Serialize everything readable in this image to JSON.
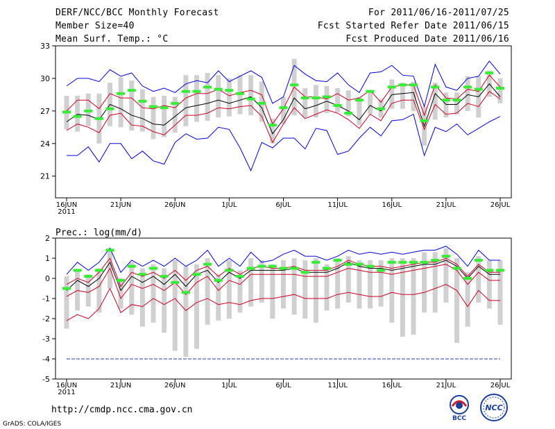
{
  "header": {
    "title": "DERF/NCC/BCC Monthly Forecast",
    "member_size": "Member Size=40",
    "variable": "Mean Surf. Temp.: °C",
    "period": "For 2011/06/16-2011/07/25",
    "refer_date": "Fcst Started Refer Date 2011/06/15",
    "produced_date": "Fcst Produced Date 2011/06/16"
  },
  "footer": {
    "url": "http://cmdp.ncc.cma.gov.cn",
    "credit": "GrADS: COLA/IGES",
    "logo_left_text": "BCC",
    "logo_right_text": "NCC"
  },
  "colors": {
    "grey_bar": "#d0d0d0",
    "green": "#33ee33",
    "mean": "#000000",
    "red": "#cc0022",
    "blue": "#0000dd",
    "dashed_blue": "#2233aa"
  },
  "chart_data": [
    {
      "type": "box-line",
      "title": "Mean Surf. Temp.: °C",
      "ylabel": "°C",
      "ylim": [
        19,
        33
      ],
      "yticks": [
        21,
        24,
        27,
        30,
        33
      ],
      "x_tick_labels": [
        "16JUN\n2011",
        "21JUN",
        "26JUN",
        "1JUL",
        "6JUL",
        "11JUL",
        "16JUL",
        "21JUL",
        "26JUL"
      ],
      "x_tick_day_index": [
        0,
        5,
        10,
        15,
        20,
        25,
        30,
        35,
        40
      ],
      "days": 40,
      "series": [
        {
          "name": "max",
          "color": "blue",
          "values": [
            29.3,
            30,
            30,
            29.7,
            30.8,
            30.2,
            30.5,
            29.3,
            28.8,
            29.1,
            28.7,
            29.5,
            29.8,
            29.6,
            30.7,
            29.7,
            30.2,
            30.7,
            30.1,
            27.7,
            28.3,
            31.2,
            30.4,
            29.8,
            29.7,
            30.5,
            29.4,
            28.7,
            30.5,
            30.6,
            31.2,
            30.3,
            30.2,
            27.4,
            31.3,
            29.2,
            28.9,
            30,
            30.2,
            31.6,
            30.4
          ]
        },
        {
          "name": "upper",
          "color": "red",
          "values": [
            27,
            28,
            28,
            27.2,
            28.6,
            28.2,
            28.2,
            27.3,
            27.2,
            27.5,
            27.3,
            28.2,
            28.6,
            28.6,
            29,
            28.4,
            28.7,
            28.9,
            28.5,
            25.8,
            27.2,
            29.2,
            28.3,
            28.3,
            28.1,
            28.6,
            28,
            28.2,
            28.9,
            27.8,
            29.2,
            29.4,
            29.4,
            26.6,
            29.4,
            28.2,
            28.1,
            29,
            28.8,
            30.3,
            29.2
          ]
        },
        {
          "name": "mean",
          "color": "mean",
          "values": [
            26,
            26.7,
            26.6,
            26.2,
            27.6,
            27.2,
            26.6,
            26.3,
            25.8,
            25.7,
            26.5,
            27.3,
            27.5,
            27.7,
            28,
            27.7,
            28,
            28.3,
            27.3,
            24.9,
            26.2,
            28.2,
            27.2,
            27.5,
            27.9,
            27.5,
            27,
            26.2,
            27.5,
            27,
            28.5,
            28.6,
            28.7,
            25.6,
            28.6,
            27.6,
            27.6,
            28.5,
            28.3,
            29.5,
            28.3
          ]
        },
        {
          "name": "lower",
          "color": "red",
          "values": [
            25.2,
            25.8,
            25.5,
            25,
            26.6,
            26.8,
            25.7,
            25.6,
            25.1,
            24.8,
            25.7,
            26.6,
            26.6,
            26.8,
            27.3,
            27.2,
            27.4,
            27.5,
            26.5,
            24.1,
            25.8,
            27.3,
            26.3,
            26.7,
            27.1,
            26.8,
            26.2,
            25.4,
            26.7,
            26.1,
            27.7,
            28,
            28,
            25.3,
            27.6,
            26.7,
            26.8,
            27.7,
            27.4,
            28.8,
            28.1
          ]
        },
        {
          "name": "min",
          "color": "blue",
          "values": [
            22.9,
            22.9,
            23.7,
            22.3,
            24,
            24,
            22.6,
            23.3,
            22.4,
            22.1,
            24.1,
            24.9,
            24.4,
            24.5,
            25.5,
            25.3,
            23.6,
            21.5,
            24.1,
            23.6,
            24.5,
            24.5,
            23.5,
            25.4,
            25.2,
            23,
            23.3,
            24.5,
            25.5,
            24.7,
            26.1,
            26.2,
            26.7,
            22.9,
            25.5,
            25.1,
            25.8,
            24.8,
            25.4,
            26,
            26.5
          ]
        }
      ],
      "boxes_low": [
        25.3,
        25.1,
        25.6,
        24.0,
        25.6,
        25.5,
        25.2,
        25.1,
        24.4,
        24.6,
        25.0,
        25.6,
        26.0,
        26.1,
        26.4,
        26.5,
        26.7,
        26.6,
        26.0,
        24.0,
        25.8,
        26.6,
        26.4,
        26.4,
        26.8,
        26.9,
        26.5,
        25.7,
        26.7,
        26.4,
        27.2,
        27.2,
        27.0,
        23.8,
        26.2,
        26.4,
        26.7,
        27.0,
        26.4,
        28.3,
        27.7
      ],
      "boxes_high": [
        28.4,
        28.4,
        28.6,
        28.6,
        29.6,
        30.1,
        29.8,
        29.0,
        28.3,
        28.4,
        28.3,
        30.3,
        30.3,
        30.5,
        30.3,
        30.0,
        30.3,
        30.3,
        29.7,
        26.3,
        28.3,
        31.8,
        29.1,
        29.4,
        29.3,
        29.1,
        28.9,
        28.3,
        28.8,
        28.1,
        29.9,
        29.6,
        29.7,
        27.4,
        29.6,
        28.7,
        28.7,
        30.2,
        30.2,
        30.7,
        30.0
      ],
      "green_marks": [
        26.9,
        26.5,
        27.0,
        26.3,
        27.2,
        28.6,
        28.9,
        27.9,
        27.4,
        27.3,
        27.7,
        28.8,
        28.8,
        29.2,
        29.0,
        28.9,
        28.6,
        28.1,
        27.7,
        25.7,
        27.3,
        29.4,
        28.2,
        28.2,
        28.3,
        27.5,
        26.8,
        28.0,
        28.8,
        27.2,
        29.2,
        29.4,
        29.4,
        26.1,
        29.2,
        28.0,
        28.0,
        29.2,
        29.0,
        30.5,
        29.1
      ]
    },
    {
      "type": "box-line",
      "title": "Prec.: log(mm/d)",
      "ylabel": "log(mm/d)",
      "ylim": [
        -5,
        2
      ],
      "yticks": [
        -5,
        -4,
        -3,
        -2,
        -1,
        0,
        1,
        2
      ],
      "x_tick_labels": [
        "16JUN\n2011",
        "21JUN",
        "26JUN",
        "1JUL",
        "6JUL",
        "11JUL",
        "16JUL",
        "21JUL",
        "26JUL"
      ],
      "x_tick_day_index": [
        0,
        5,
        10,
        15,
        20,
        25,
        30,
        35,
        40
      ],
      "days": 40,
      "reference_line": -4,
      "series": [
        {
          "name": "max",
          "color": "blue",
          "values": [
            0.2,
            0.8,
            0.4,
            0.8,
            1.5,
            0.3,
            0.9,
            0.6,
            0.9,
            0.6,
            1.0,
            0.6,
            0.9,
            1.4,
            0.6,
            1.0,
            0.6,
            1.3,
            0.8,
            0.9,
            1.2,
            1.4,
            1.1,
            1.1,
            0.9,
            1.1,
            1.4,
            1.2,
            1.3,
            1.2,
            1.3,
            1.2,
            1.3,
            1.4,
            1.4,
            1.6,
            1.2,
            0.6,
            1.4,
            0.9,
            0.9
          ]
        },
        {
          "name": "upper",
          "color": "red",
          "values": [
            -0.3,
            0.0,
            -0.2,
            0.3,
            1.0,
            -0.4,
            0.3,
            0.1,
            0.3,
            0.0,
            0.4,
            -0.1,
            0.4,
            0.6,
            0.1,
            0.5,
            0.2,
            0.5,
            0.6,
            0.5,
            0.5,
            0.6,
            0.4,
            0.4,
            0.4,
            0.6,
            0.9,
            0.7,
            0.6,
            0.6,
            0.5,
            0.6,
            0.7,
            0.8,
            0.8,
            1.0,
            0.7,
            0.1,
            0.7,
            0.3,
            0.3
          ]
        },
        {
          "name": "mean",
          "color": "mean",
          "values": [
            -0.6,
            -0.1,
            -0.4,
            0.0,
            0.8,
            -0.6,
            0.1,
            -0.2,
            0.1,
            -0.3,
            0.2,
            -0.4,
            0.2,
            0.4,
            -0.2,
            0.3,
            0.0,
            0.4,
            0.4,
            0.4,
            0.4,
            0.5,
            0.3,
            0.3,
            0.3,
            0.5,
            0.8,
            0.6,
            0.5,
            0.5,
            0.4,
            0.5,
            0.6,
            0.7,
            0.7,
            0.9,
            0.6,
            0.0,
            0.6,
            0.2,
            0.2
          ]
        },
        {
          "name": "lower",
          "color": "red",
          "values": [
            -0.9,
            -0.6,
            -0.7,
            -0.4,
            0.5,
            -1.0,
            -0.3,
            -0.5,
            -0.3,
            -0.6,
            -0.2,
            -0.8,
            -0.2,
            0.1,
            -0.6,
            -0.1,
            -0.3,
            0.2,
            0.2,
            0.2,
            0.2,
            0.2,
            0.1,
            0.1,
            0.1,
            0.3,
            0.5,
            0.4,
            0.3,
            0.3,
            0.2,
            0.3,
            0.4,
            0.5,
            0.6,
            0.7,
            0.4,
            -0.3,
            0.3,
            -0.1,
            -0.1
          ]
        },
        {
          "name": "min",
          "color": "red",
          "values": [
            -2.1,
            -1.8,
            -2.0,
            -1.5,
            -0.5,
            -1.7,
            -1.3,
            -1.4,
            -1.0,
            -1.3,
            -1.0,
            -1.6,
            -1.2,
            -1.0,
            -1.3,
            -1.2,
            -1.3,
            -1.1,
            -1.0,
            -1.0,
            -0.9,
            -0.8,
            -1.0,
            -1.0,
            -1.0,
            -0.8,
            -0.7,
            -0.8,
            -0.9,
            -0.9,
            -0.7,
            -0.8,
            -0.8,
            -0.7,
            -0.5,
            -0.3,
            -0.6,
            -1.4,
            -0.6,
            -1.1,
            -1.1
          ]
        }
      ],
      "boxes_low": [
        -2.5,
        -1.6,
        -1.4,
        -1.7,
        -0.5,
        -1.5,
        -1.8,
        -2.4,
        -2.2,
        -2.7,
        -3.6,
        -3.9,
        -3.5,
        -2.3,
        -2.1,
        -2.0,
        -1.7,
        -1.4,
        -1.2,
        -2.0,
        -1.5,
        -1.8,
        -2.0,
        -2.2,
        -1.6,
        -1.5,
        -1.2,
        -1.5,
        -1.5,
        -1.4,
        -2.2,
        -2.9,
        -2.8,
        -1.7,
        -1.7,
        -1.2,
        -3.2,
        -2.4,
        -1.2,
        -1.5,
        -2.3
      ],
      "boxes_high": [
        0.1,
        0.4,
        0.2,
        0.5,
        1.5,
        0.0,
        0.8,
        0.5,
        0.7,
        0.5,
        0.9,
        0.6,
        0.7,
        1.0,
        0.2,
        0.9,
        0.4,
        1.0,
        0.9,
        0.7,
        0.9,
        1.0,
        0.9,
        1.0,
        0.7,
        1.0,
        1.1,
        0.9,
        0.9,
        0.9,
        1.0,
        1.0,
        1.0,
        1.3,
        1.3,
        1.5,
        1.0,
        0.3,
        1.1,
        0.9,
        0.9
      ],
      "green_marks": [
        -0.5,
        0.4,
        0.1,
        0.4,
        1.4,
        -0.1,
        0.6,
        0.2,
        0.5,
        0.1,
        -0.2,
        -0.7,
        0.2,
        0.7,
        -0.1,
        0.4,
        0.1,
        0.5,
        0.6,
        0.6,
        0.5,
        0.5,
        0.3,
        0.8,
        0.5,
        0.9,
        0.7,
        0.7,
        0.6,
        0.4,
        0.8,
        0.8,
        0.8,
        0.8,
        0.9,
        1.1,
        0.5,
        0.0,
        0.9,
        0.4,
        0.4
      ]
    }
  ]
}
